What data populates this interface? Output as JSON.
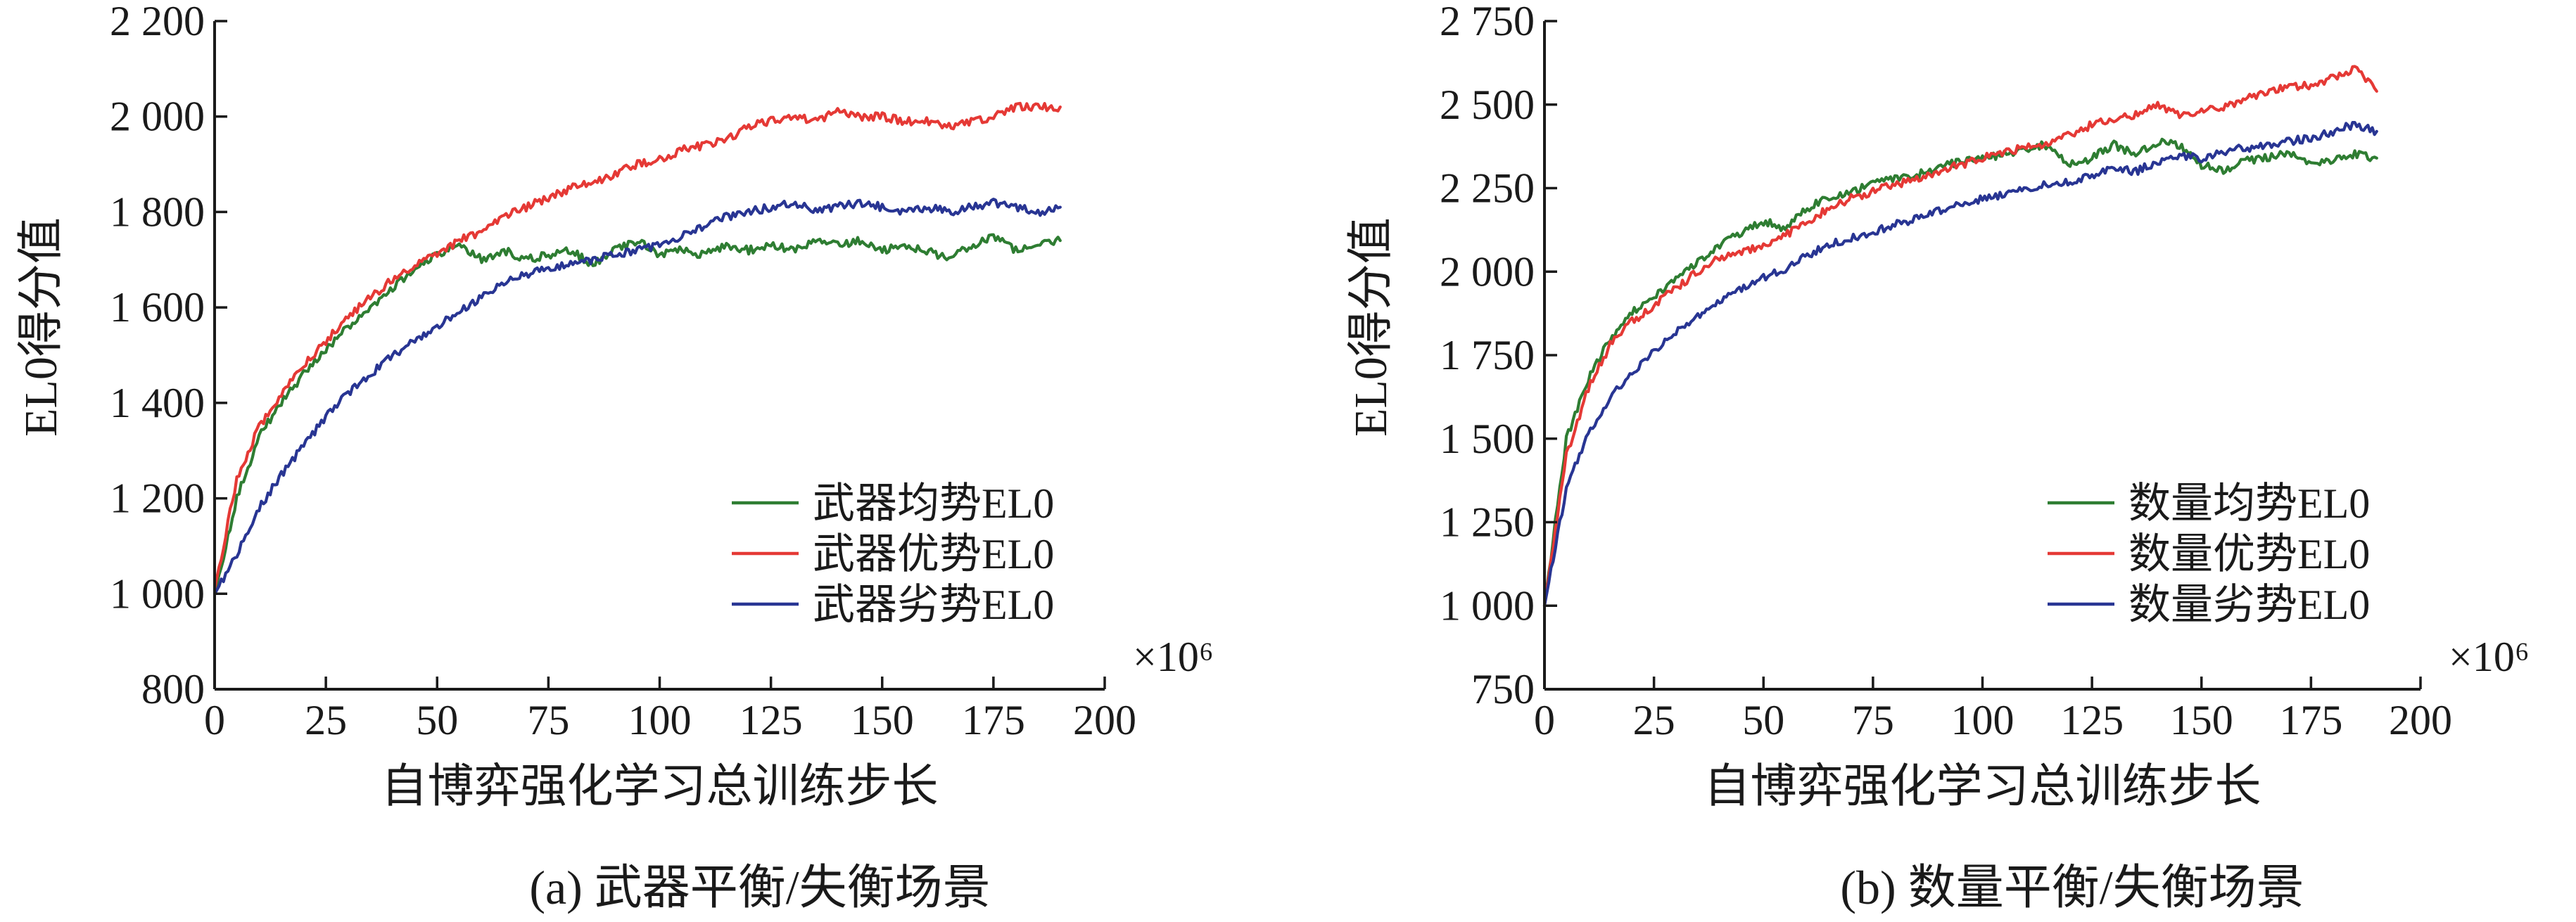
{
  "chart_data": [
    {
      "type": "line",
      "caption": "(a) 武器平衡/失衡场景",
      "xlabel": "自博弈强化学习总训练步长",
      "ylabel": "EL0得分值",
      "x_multiplier": "×10⁶",
      "xlim": [
        0,
        200
      ],
      "ylim": [
        800,
        2200
      ],
      "xticks": [
        0,
        25,
        50,
        75,
        100,
        125,
        150,
        175,
        200
      ],
      "xtick_labels": [
        "0",
        "25",
        "50",
        "75",
        "100",
        "125",
        "150",
        "175",
        "200"
      ],
      "yticks": [
        800,
        1000,
        1200,
        1400,
        1600,
        1800,
        2000,
        2200
      ],
      "ytick_labels": [
        "800",
        "1 000",
        "1 200",
        "1 400",
        "1 600",
        "1 800",
        "2 000",
        "2 200"
      ],
      "legend_position": "bottom-right",
      "series": [
        {
          "name": "武器均势EL0",
          "color": "#2e7d32",
          "x": [
            0,
            5,
            10,
            15,
            20,
            25,
            30,
            35,
            40,
            45,
            50,
            55,
            60,
            65,
            70,
            75,
            80,
            85,
            90,
            95,
            100,
            105,
            110,
            115,
            120,
            125,
            130,
            135,
            140,
            145,
            150,
            155,
            160,
            165,
            170,
            175,
            180,
            185,
            190
          ],
          "y": [
            1000,
            1200,
            1330,
            1400,
            1460,
            1510,
            1560,
            1600,
            1640,
            1680,
            1710,
            1730,
            1700,
            1720,
            1700,
            1710,
            1720,
            1690,
            1720,
            1740,
            1710,
            1720,
            1710,
            1730,
            1720,
            1730,
            1720,
            1740,
            1730,
            1740,
            1720,
            1730,
            1720,
            1700,
            1730,
            1750,
            1720,
            1730,
            1740
          ]
        },
        {
          "name": "武器优势EL0",
          "color": "#e53935",
          "x": [
            0,
            5,
            10,
            15,
            20,
            25,
            30,
            35,
            40,
            45,
            50,
            55,
            60,
            65,
            70,
            75,
            80,
            85,
            90,
            95,
            100,
            105,
            110,
            115,
            120,
            125,
            130,
            135,
            140,
            145,
            150,
            155,
            160,
            165,
            170,
            175,
            180,
            185,
            190
          ],
          "y": [
            1010,
            1240,
            1350,
            1420,
            1480,
            1530,
            1580,
            1620,
            1660,
            1690,
            1710,
            1740,
            1760,
            1790,
            1810,
            1830,
            1850,
            1860,
            1880,
            1900,
            1910,
            1930,
            1940,
            1950,
            1980,
            1990,
            2000,
            1990,
            2010,
            2000,
            2000,
            1990,
            1990,
            1980,
            1990,
            2000,
            2020,
            2020,
            2020
          ]
        },
        {
          "name": "武器劣势EL0",
          "color": "#283593",
          "x": [
            0,
            5,
            10,
            15,
            20,
            25,
            30,
            35,
            40,
            45,
            50,
            55,
            60,
            65,
            70,
            75,
            80,
            85,
            90,
            95,
            100,
            105,
            110,
            115,
            120,
            125,
            130,
            135,
            140,
            145,
            150,
            155,
            160,
            165,
            170,
            175,
            180,
            185,
            190
          ],
          "y": [
            1000,
            1080,
            1180,
            1250,
            1310,
            1370,
            1420,
            1460,
            1500,
            1530,
            1560,
            1590,
            1620,
            1650,
            1670,
            1680,
            1690,
            1700,
            1710,
            1720,
            1730,
            1750,
            1770,
            1790,
            1800,
            1810,
            1820,
            1800,
            1810,
            1820,
            1810,
            1800,
            1810,
            1800,
            1810,
            1820,
            1810,
            1800,
            1810
          ]
        }
      ]
    },
    {
      "type": "line",
      "caption": "(b) 数量平衡/失衡场景",
      "xlabel": "自博弈强化学习总训练步长",
      "ylabel": "EL0得分值",
      "x_multiplier": "×10⁶",
      "xlim": [
        0,
        200
      ],
      "ylim": [
        750,
        2750
      ],
      "xticks": [
        0,
        25,
        50,
        75,
        100,
        125,
        150,
        175,
        200
      ],
      "xtick_labels": [
        "0",
        "25",
        "50",
        "75",
        "100",
        "125",
        "150",
        "175",
        "200"
      ],
      "yticks": [
        750,
        1000,
        1250,
        1500,
        1750,
        2000,
        2250,
        2500,
        2750
      ],
      "ytick_labels": [
        "750",
        "1 000",
        "1 250",
        "1 500",
        "1 750",
        "2 000",
        "2 250",
        "2 500",
        "2 750"
      ],
      "legend_position": "bottom-right",
      "series": [
        {
          "name": "数量均势EL0",
          "color": "#2e7d32",
          "x": [
            0,
            5,
            10,
            15,
            20,
            25,
            30,
            35,
            40,
            45,
            50,
            55,
            60,
            65,
            70,
            75,
            80,
            85,
            90,
            95,
            100,
            105,
            110,
            115,
            120,
            125,
            130,
            135,
            140,
            145,
            150,
            155,
            160,
            165,
            170,
            175,
            180,
            185,
            190
          ],
          "y": [
            1000,
            1500,
            1680,
            1800,
            1880,
            1920,
            1980,
            2030,
            2080,
            2120,
            2150,
            2130,
            2190,
            2220,
            2240,
            2260,
            2280,
            2290,
            2310,
            2330,
            2340,
            2350,
            2370,
            2380,
            2320,
            2340,
            2380,
            2350,
            2390,
            2380,
            2320,
            2300,
            2330,
            2340,
            2360,
            2320,
            2330,
            2350,
            2340
          ]
        },
        {
          "name": "数量优势EL0",
          "color": "#e53935",
          "x": [
            0,
            5,
            10,
            15,
            20,
            25,
            30,
            35,
            40,
            45,
            50,
            55,
            60,
            65,
            70,
            75,
            80,
            85,
            90,
            95,
            100,
            105,
            110,
            115,
            120,
            125,
            130,
            135,
            140,
            145,
            150,
            155,
            160,
            165,
            170,
            175,
            180,
            185,
            190
          ],
          "y": [
            1000,
            1450,
            1650,
            1780,
            1850,
            1900,
            1950,
            2000,
            2040,
            2060,
            2080,
            2110,
            2150,
            2190,
            2220,
            2240,
            2260,
            2280,
            2300,
            2320,
            2340,
            2360,
            2370,
            2380,
            2410,
            2440,
            2460,
            2470,
            2500,
            2470,
            2480,
            2490,
            2520,
            2540,
            2550,
            2560,
            2580,
            2610,
            2540
          ]
        },
        {
          "name": "数量劣势EL0",
          "color": "#283593",
          "x": [
            0,
            5,
            10,
            15,
            20,
            25,
            30,
            35,
            40,
            45,
            50,
            55,
            60,
            65,
            70,
            75,
            80,
            85,
            90,
            95,
            100,
            105,
            110,
            115,
            120,
            125,
            130,
            135,
            140,
            145,
            150,
            155,
            160,
            165,
            170,
            175,
            180,
            185,
            190
          ],
          "y": [
            1000,
            1350,
            1520,
            1620,
            1700,
            1760,
            1820,
            1870,
            1910,
            1950,
            1980,
            2010,
            2050,
            2080,
            2100,
            2120,
            2140,
            2160,
            2180,
            2200,
            2220,
            2230,
            2250,
            2260,
            2270,
            2290,
            2310,
            2300,
            2330,
            2350,
            2340,
            2360,
            2370,
            2380,
            2390,
            2400,
            2420,
            2440,
            2420
          ]
        }
      ]
    }
  ]
}
